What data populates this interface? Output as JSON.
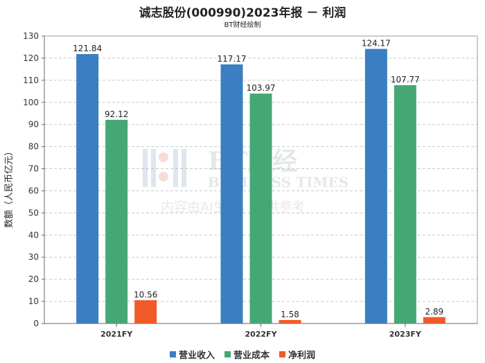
{
  "header": {
    "title": "诚志股份(000990)2023年报 － 利润",
    "subtitle": "BT财经绘制"
  },
  "watermark": {
    "brand_cn": "BT财经",
    "brand_en": "BUSINESS TIMES",
    "notice": "内容由AI生成，仅供参考"
  },
  "colors": {
    "revenue": "#3a7fc1",
    "cost": "#45a874",
    "profit": "#f05a28"
  },
  "chart_data": {
    "type": "bar",
    "categories": [
      "2021FY",
      "2022FY",
      "2023FY"
    ],
    "series": [
      {
        "name": "营业收入",
        "values": [
          121.84,
          117.17,
          124.17
        ]
      },
      {
        "name": "营业成本",
        "values": [
          92.12,
          103.97,
          107.77
        ]
      },
      {
        "name": "净利润",
        "values": [
          10.56,
          1.58,
          2.89
        ]
      }
    ],
    "ylabel": "数额（人民币亿元）",
    "xlabel": "",
    "ylim": [
      0,
      130
    ],
    "yticks": [
      0,
      10,
      20,
      30,
      40,
      50,
      60,
      70,
      80,
      90,
      100,
      110,
      120,
      130
    ],
    "grid": true,
    "legend_position": "bottom"
  }
}
